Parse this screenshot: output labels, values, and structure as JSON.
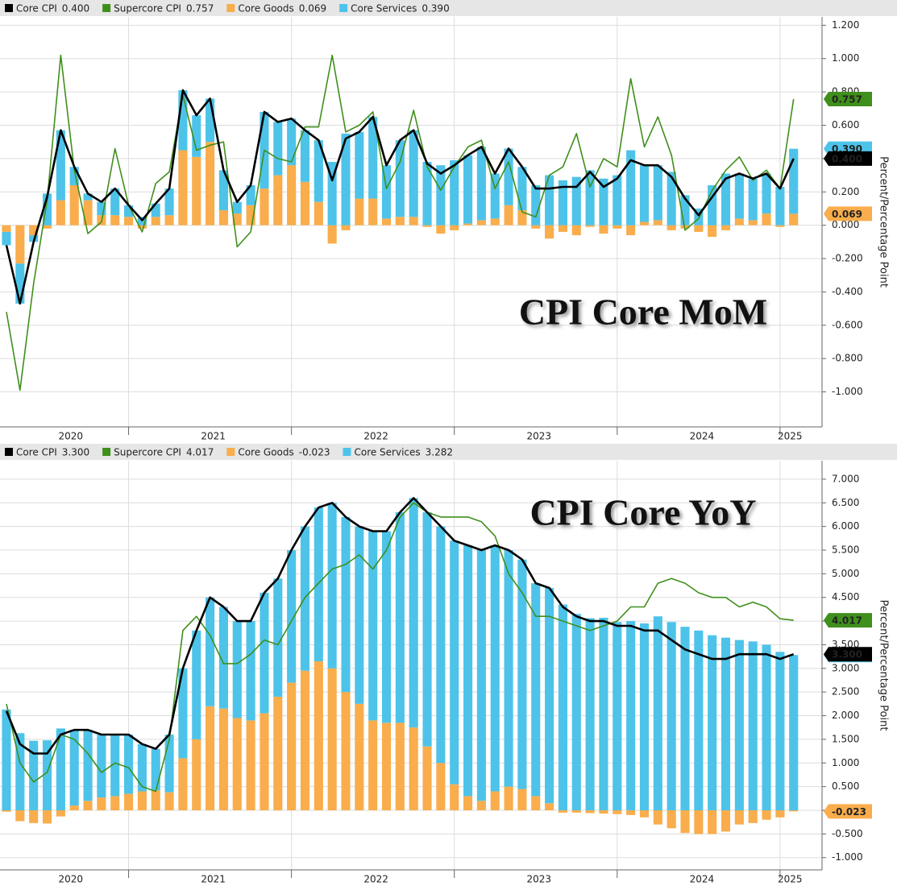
{
  "chart_data": [
    {
      "type": "bar_line",
      "title": "CPI Core MoM",
      "y_label": "Percent/Percentage Point",
      "x_labels": [
        "2020",
        "2021",
        "2022",
        "2023",
        "2024",
        "2025"
      ],
      "ylim": [
        -1.21,
        1.25
      ],
      "yticks": [
        {
          "value": -1.0,
          "label": "-1.000"
        },
        {
          "value": -0.8,
          "label": "-0.800"
        },
        {
          "value": -0.6,
          "label": "-0.600"
        },
        {
          "value": -0.4,
          "label": "-0.400"
        },
        {
          "value": -0.2,
          "label": "-0.200"
        },
        {
          "value": 0,
          "label": "0.000"
        },
        {
          "value": 0.2,
          "label": "0.200"
        },
        {
          "value": 0.4,
          "label": "0.400"
        },
        {
          "value": 0.6,
          "label": "0.600"
        },
        {
          "value": 0.8,
          "label": "0.800"
        },
        {
          "value": 1.0,
          "label": "1.000"
        },
        {
          "value": 1.2,
          "label": "1.200"
        }
      ],
      "grid": true,
      "series": [
        {
          "name": "Core CPI",
          "current_label": "0.400",
          "kind": "line",
          "color": "#000000",
          "values": [
            -0.12,
            -0.47,
            -0.1,
            0.17,
            0.57,
            0.35,
            0.19,
            0.14,
            0.22,
            0.12,
            0.03,
            0.13,
            0.22,
            0.81,
            0.66,
            0.76,
            0.33,
            0.14,
            0.24,
            0.68,
            0.62,
            0.64,
            0.57,
            0.51,
            0.27,
            0.52,
            0.56,
            0.65,
            0.36,
            0.51,
            0.57,
            0.37,
            0.31,
            0.36,
            0.42,
            0.47,
            0.31,
            0.46,
            0.35,
            0.22,
            0.22,
            0.23,
            0.23,
            0.32,
            0.23,
            0.28,
            0.39,
            0.36,
            0.36,
            0.29,
            0.16,
            0.06,
            0.17,
            0.28,
            0.31,
            0.28,
            0.31,
            0.22,
            0.4
          ]
        },
        {
          "name": "Supercore CPI",
          "current_label": "0.757",
          "kind": "line",
          "color": "#3f8f1c",
          "values": [
            -0.52,
            -0.99,
            -0.35,
            0.15,
            1.02,
            0.33,
            -0.05,
            0.02,
            0.46,
            0.12,
            -0.04,
            0.25,
            0.32,
            0.78,
            0.45,
            0.48,
            0.5,
            -0.13,
            -0.04,
            0.45,
            0.4,
            0.38,
            0.59,
            0.59,
            1.02,
            0.56,
            0.6,
            0.68,
            0.22,
            0.38,
            0.69,
            0.35,
            0.21,
            0.35,
            0.47,
            0.51,
            0.22,
            0.38,
            0.08,
            0.05,
            0.3,
            0.35,
            0.55,
            0.23,
            0.4,
            0.35,
            0.88,
            0.47,
            0.65,
            0.42,
            -0.03,
            0.04,
            0.21,
            0.33,
            0.41,
            0.27,
            0.33,
            0.22,
            0.757
          ]
        },
        {
          "name": "Core Goods",
          "current_label": "0.069",
          "kind": "bar",
          "color": "#f9ad4c",
          "values": [
            -0.04,
            -0.23,
            -0.06,
            -0.02,
            0.15,
            0.24,
            0.15,
            0.06,
            0.06,
            0.05,
            -0.02,
            0.05,
            0.06,
            0.45,
            0.41,
            0.5,
            0.09,
            0.07,
            0.12,
            0.22,
            0.3,
            0.36,
            0.26,
            0.14,
            -0.11,
            -0.03,
            0.16,
            0.16,
            0.04,
            0.05,
            0.05,
            -0.01,
            -0.05,
            -0.03,
            0.01,
            0.03,
            0.04,
            0.12,
            0.09,
            -0.02,
            -0.08,
            -0.04,
            -0.06,
            -0.01,
            -0.05,
            -0.02,
            -0.06,
            0.02,
            0.03,
            -0.03,
            -0.02,
            -0.04,
            -0.07,
            -0.03,
            0.04,
            0.03,
            0.07,
            -0.01,
            0.069
          ]
        },
        {
          "name": "Core Services",
          "current_label": "0.390",
          "kind": "bar",
          "color": "#4ec3e9",
          "values": [
            -0.08,
            -0.24,
            -0.04,
            0.19,
            0.42,
            0.11,
            0.04,
            0.08,
            0.16,
            0.07,
            0.05,
            0.08,
            0.16,
            0.36,
            0.25,
            0.26,
            0.24,
            0.07,
            0.12,
            0.46,
            0.32,
            0.28,
            0.31,
            0.37,
            0.38,
            0.55,
            0.4,
            0.49,
            0.32,
            0.46,
            0.52,
            0.38,
            0.36,
            0.39,
            0.41,
            0.44,
            0.27,
            0.34,
            0.26,
            0.24,
            0.3,
            0.27,
            0.29,
            0.33,
            0.28,
            0.3,
            0.45,
            0.34,
            0.33,
            0.32,
            0.18,
            0.1,
            0.24,
            0.31,
            0.27,
            0.25,
            0.24,
            0.23,
            0.39
          ]
        }
      ]
    },
    {
      "type": "bar_line",
      "title": "CPI Core YoY",
      "y_label": "Percent/Percentage Point",
      "x_labels": [
        "2020",
        "2021",
        "2022",
        "2023",
        "2024",
        "2025"
      ],
      "ylim": [
        -1.26,
        7.39
      ],
      "yticks": [
        {
          "value": -1.0,
          "label": "-1.000"
        },
        {
          "value": -0.5,
          "label": "-0.500"
        },
        {
          "value": 0,
          "label": "0.000"
        },
        {
          "value": 0.5,
          "label": "0.500"
        },
        {
          "value": 1.0,
          "label": "1.000"
        },
        {
          "value": 1.5,
          "label": "1.500"
        },
        {
          "value": 2.0,
          "label": "2.000"
        },
        {
          "value": 2.5,
          "label": "2.500"
        },
        {
          "value": 3.0,
          "label": "3.000"
        },
        {
          "value": 3.5,
          "label": "3.500"
        },
        {
          "value": 4.0,
          "label": "4.000"
        },
        {
          "value": 4.5,
          "label": "4.500"
        },
        {
          "value": 5.0,
          "label": "5.000"
        },
        {
          "value": 5.5,
          "label": "5.500"
        },
        {
          "value": 6.0,
          "label": "6.000"
        },
        {
          "value": 6.5,
          "label": "6.500"
        },
        {
          "value": 7.0,
          "label": "7.000"
        }
      ],
      "grid": true,
      "series": [
        {
          "name": "Core CPI",
          "current_label": "3.300",
          "kind": "line",
          "color": "#000000",
          "values": [
            2.1,
            1.4,
            1.2,
            1.2,
            1.6,
            1.7,
            1.7,
            1.6,
            1.6,
            1.6,
            1.4,
            1.3,
            1.6,
            3.0,
            3.8,
            4.5,
            4.3,
            4.0,
            4.0,
            4.6,
            4.9,
            5.5,
            6.0,
            6.4,
            6.5,
            6.2,
            6.0,
            5.9,
            5.9,
            6.3,
            6.6,
            6.3,
            6.0,
            5.7,
            5.6,
            5.5,
            5.6,
            5.5,
            5.3,
            4.8,
            4.7,
            4.3,
            4.1,
            4.0,
            4.0,
            3.9,
            3.9,
            3.8,
            3.8,
            3.6,
            3.4,
            3.3,
            3.2,
            3.2,
            3.3,
            3.3,
            3.3,
            3.2,
            3.3
          ]
        },
        {
          "name": "Supercore CPI",
          "current_label": "4.017",
          "kind": "line",
          "color": "#3f8f1c",
          "values": [
            2.25,
            1.0,
            0.6,
            0.8,
            1.6,
            1.5,
            1.2,
            0.8,
            1.0,
            0.9,
            0.5,
            0.4,
            1.5,
            3.8,
            4.1,
            3.7,
            3.1,
            3.1,
            3.3,
            3.6,
            3.5,
            4.0,
            4.5,
            4.8,
            5.1,
            5.2,
            5.4,
            5.1,
            5.5,
            6.2,
            6.5,
            6.3,
            6.2,
            6.2,
            6.2,
            6.1,
            5.8,
            5.0,
            4.6,
            4.1,
            4.1,
            4.0,
            3.9,
            3.8,
            3.9,
            4.0,
            4.3,
            4.3,
            4.8,
            4.9,
            4.8,
            4.6,
            4.5,
            4.5,
            4.3,
            4.4,
            4.3,
            4.05,
            4.017
          ]
        },
        {
          "name": "Core Goods",
          "current_label": "-0.023",
          "kind": "bar",
          "color": "#f9ad4c",
          "values": [
            -0.03,
            -0.23,
            -0.27,
            -0.28,
            -0.13,
            0.1,
            0.2,
            0.27,
            0.3,
            0.35,
            0.4,
            0.42,
            0.38,
            1.1,
            1.5,
            2.2,
            2.15,
            1.95,
            1.9,
            2.05,
            2.4,
            2.7,
            2.95,
            3.15,
            3.0,
            2.5,
            2.25,
            1.9,
            1.85,
            1.85,
            1.75,
            1.35,
            1.0,
            0.55,
            0.3,
            0.2,
            0.4,
            0.5,
            0.45,
            0.3,
            0.15,
            -0.05,
            -0.05,
            -0.06,
            -0.07,
            -0.08,
            -0.1,
            -0.15,
            -0.3,
            -0.38,
            -0.48,
            -0.5,
            -0.5,
            -0.45,
            -0.3,
            -0.27,
            -0.2,
            -0.15,
            -0.023
          ]
        },
        {
          "name": "Core Services",
          "current_label": "3.282",
          "kind": "bar",
          "color": "#4ec3e9",
          "values": [
            2.13,
            1.63,
            1.47,
            1.48,
            1.73,
            1.6,
            1.5,
            1.33,
            1.3,
            1.25,
            1.0,
            0.88,
            1.22,
            1.9,
            2.3,
            2.3,
            2.15,
            2.05,
            2.1,
            2.55,
            2.5,
            2.8,
            3.05,
            3.25,
            3.5,
            3.7,
            3.75,
            4.0,
            4.05,
            4.45,
            4.85,
            4.95,
            5.0,
            5.15,
            5.3,
            5.3,
            5.2,
            5.0,
            4.85,
            4.5,
            4.55,
            4.35,
            4.15,
            4.06,
            4.07,
            3.98,
            4.0,
            3.95,
            4.1,
            3.98,
            3.88,
            3.8,
            3.7,
            3.65,
            3.6,
            3.57,
            3.5,
            3.35,
            3.282
          ]
        }
      ]
    }
  ]
}
